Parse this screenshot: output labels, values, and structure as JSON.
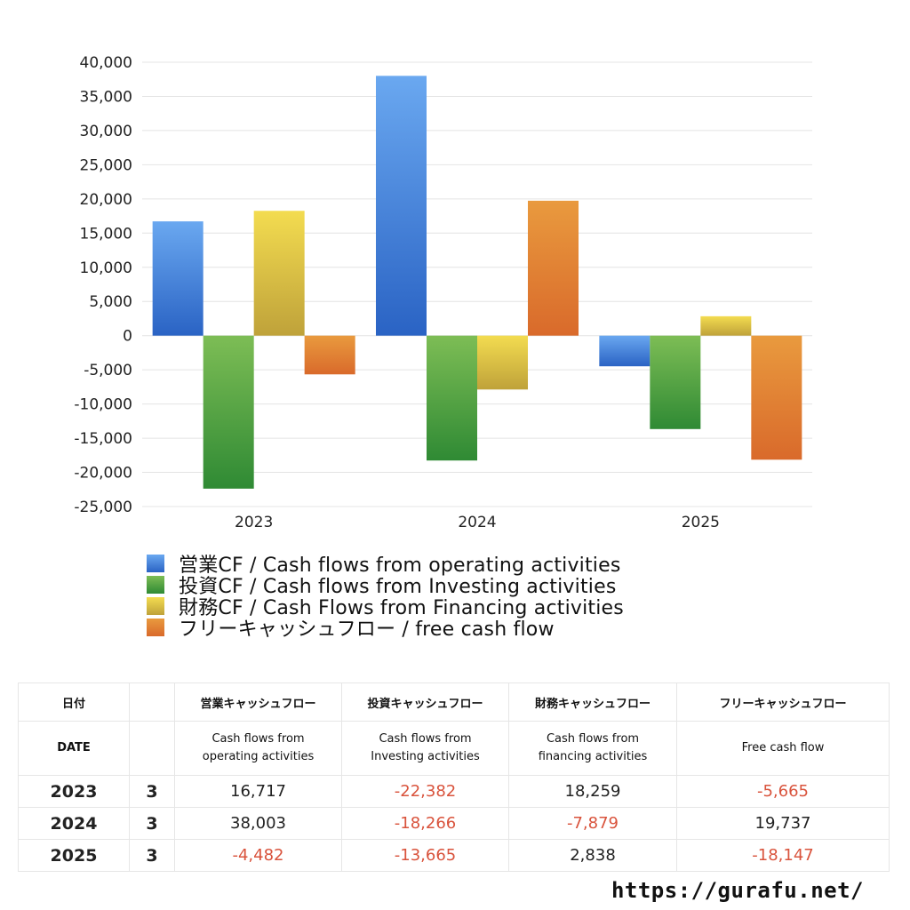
{
  "chart_data": {
    "type": "bar",
    "categories": [
      "2023",
      "2024",
      "2025"
    ],
    "series": [
      {
        "name": "営業CF / Cash flows from operating activities",
        "values": [
          16717,
          38003,
          -4482
        ],
        "color_top": "#6aa8f0",
        "color_bottom": "#2a63c4"
      },
      {
        "name": "投資CF / Cash flows from Investing activities",
        "values": [
          -22382,
          -18266,
          -13665
        ],
        "color_top": "#7dbd55",
        "color_bottom": "#2f8a34"
      },
      {
        "name": "財務CF / Cash Flows from Financing activities",
        "values": [
          18259,
          -7879,
          2838
        ],
        "color_top": "#f3dc50",
        "color_bottom": "#bfa23a"
      },
      {
        "name": "フリーキャッシュフロー / free cash flow",
        "values": [
          -5665,
          19737,
          -18147
        ],
        "color_top": "#e99a3e",
        "color_bottom": "#d96a2b"
      }
    ],
    "ylim": [
      -25000,
      40000
    ],
    "yticks": [
      40000,
      35000,
      30000,
      25000,
      20000,
      15000,
      10000,
      5000,
      0,
      -5000,
      -10000,
      -15000,
      -20000,
      -25000
    ],
    "ytick_labels": [
      "40,000",
      "35,000",
      "30,000",
      "25,000",
      "20,000",
      "15,000",
      "10,000",
      "5,000",
      "0",
      "-5,000",
      "-10,000",
      "-15,000",
      "-20,000",
      "-25,000"
    ],
    "grid": true,
    "legend_position": "bottom-left"
  },
  "table": {
    "headers_jp": [
      "日付",
      "",
      "営業キャッシュフロー",
      "投資キャッシュフロー",
      "財務キャッシュフロー",
      "フリーキャッシュフロー"
    ],
    "headers_en": [
      {
        "line1": "DATE",
        "line2": ""
      },
      {
        "line1": "",
        "line2": ""
      },
      {
        "line1": "Cash flows from",
        "line2": "operating activities"
      },
      {
        "line1": "Cash flows from",
        "line2": "Investing activities"
      },
      {
        "line1": "Cash flows from",
        "line2": "financing activities"
      },
      {
        "line1": "Free cash flow",
        "line2": ""
      }
    ],
    "rows": [
      {
        "year": "2023",
        "month": "3",
        "values": [
          "16,717",
          "-22,382",
          "18,259",
          "-5,665"
        ]
      },
      {
        "year": "2024",
        "month": "3",
        "values": [
          "38,003",
          "-18,266",
          "-7,879",
          "19,737"
        ]
      },
      {
        "year": "2025",
        "month": "3",
        "values": [
          "-4,482",
          "-13,665",
          "2,838",
          "-18,147"
        ]
      }
    ]
  },
  "footer": {
    "url": "https://gurafu.net/"
  }
}
